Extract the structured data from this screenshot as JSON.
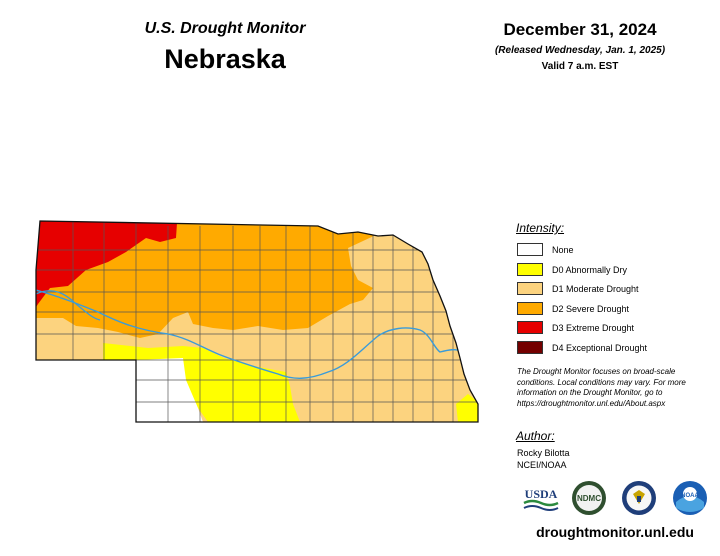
{
  "header": {
    "subtitle": "U.S. Drought Monitor",
    "state": "Nebraska",
    "date": "December 31, 2024",
    "released": "(Released Wednesday, Jan. 1, 2025)",
    "valid": "Valid 7 a.m. EST"
  },
  "legend": {
    "title": "Intensity:",
    "items": [
      {
        "label": "None",
        "color": "#ffffff"
      },
      {
        "label": "D0 Abnormally Dry",
        "color": "#ffff00"
      },
      {
        "label": "D1 Moderate Drought",
        "color": "#fcd37f"
      },
      {
        "label": "D2 Severe Drought",
        "color": "#ffaa00"
      },
      {
        "label": "D3 Extreme Drought",
        "color": "#e60000"
      },
      {
        "label": "D4 Exceptional Drought",
        "color": "#730000"
      }
    ]
  },
  "note": "The Drought Monitor focuses on broad-scale conditions. Local conditions may vary. For more information on the Drought Monitor, go to https://droughtmonitor.unl.edu/About.aspx",
  "author": {
    "title": "Author:",
    "name": "Rocky Bilotta",
    "org": "NCEI/NOAA"
  },
  "logos": [
    {
      "name": "usda-logo",
      "text": "USDA"
    },
    {
      "name": "ndmc-logo",
      "text": "NDMC"
    },
    {
      "name": "commerce-seal-logo",
      "text": ""
    },
    {
      "name": "noaa-logo",
      "text": "NOAA"
    }
  ],
  "website": "droughtmonitor.unl.edu",
  "colors": {
    "river": "#3a9bd9",
    "county_line": "#555555",
    "state_outline": "#111111"
  }
}
